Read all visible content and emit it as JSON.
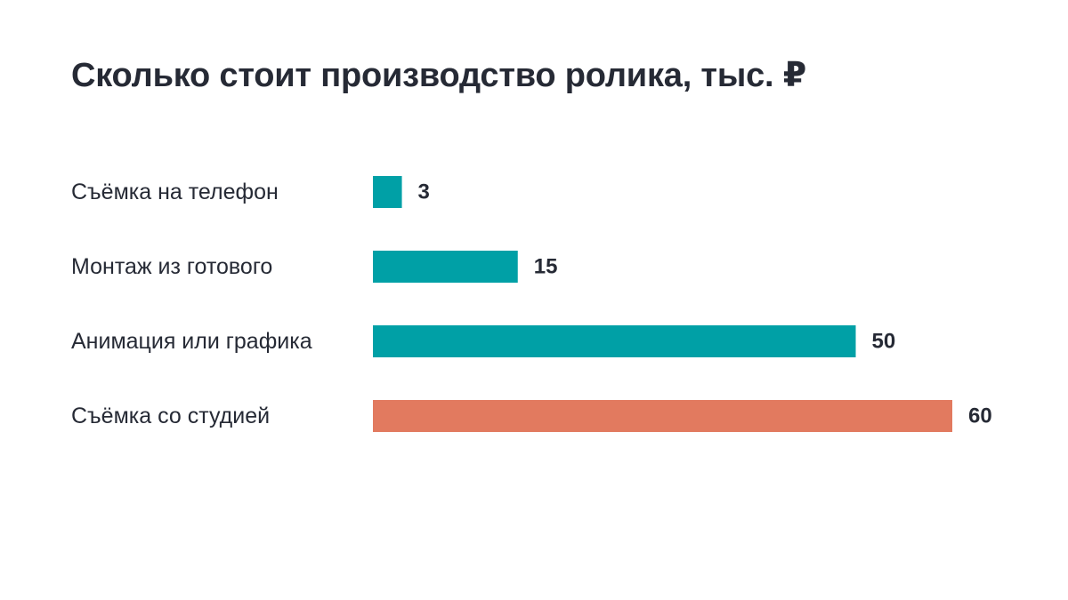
{
  "chart_data": {
    "type": "bar",
    "orientation": "horizontal",
    "title": "Сколько стоит производство ролика, тыс. ₽",
    "categories": [
      "Съёмка на телефон",
      "Монтаж из готового",
      "Анимация или графика",
      "Съёмка со студией"
    ],
    "values": [
      3,
      15,
      50,
      60
    ],
    "value_labels": [
      "3",
      "15",
      "50",
      "60"
    ],
    "xlim": [
      0,
      60
    ],
    "grid": false,
    "legend": "none",
    "colors": [
      "#00a0a6",
      "#00a0a6",
      "#00a0a6",
      "#e27a5f"
    ]
  },
  "colors": {
    "primary": "#00a0a6",
    "highlight": "#e27a5f",
    "text": "#262a35"
  }
}
